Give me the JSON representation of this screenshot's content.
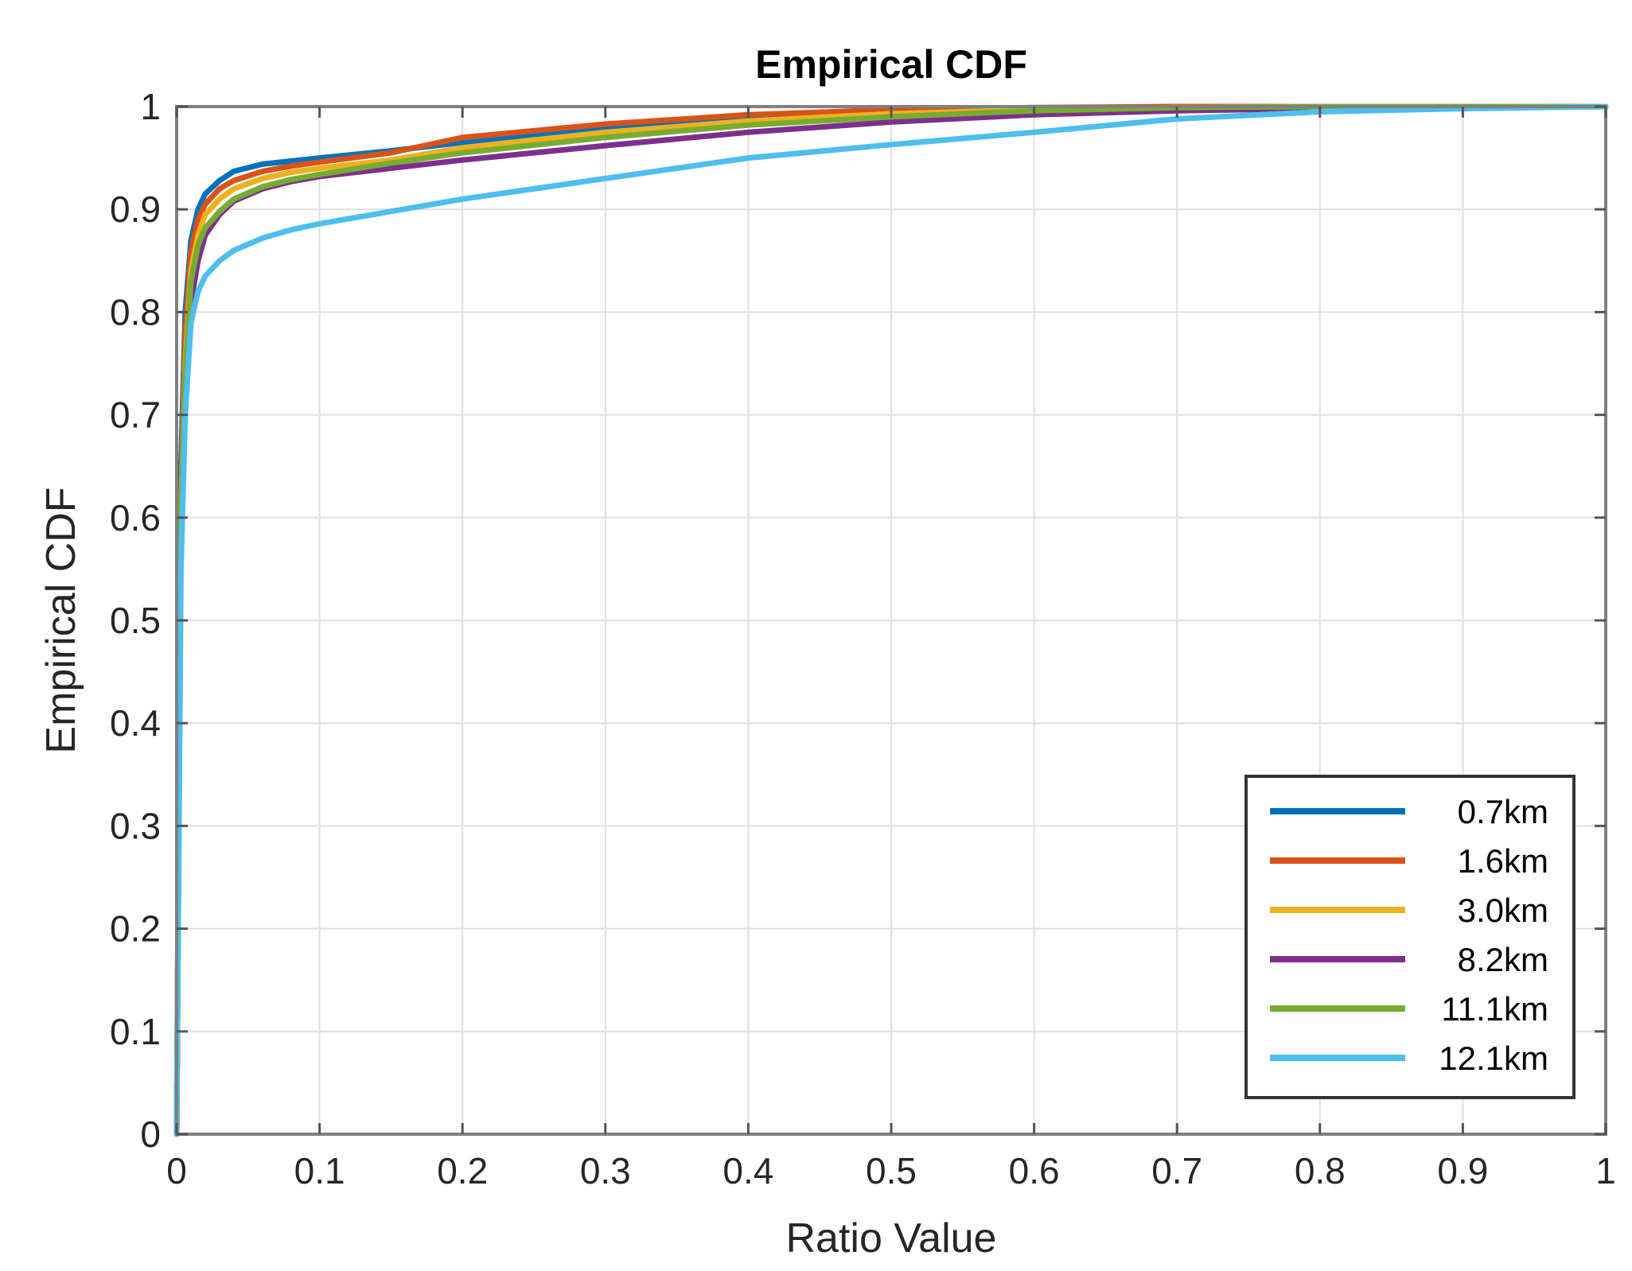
{
  "chart_data": {
    "type": "line",
    "title": "Empirical CDF",
    "xlabel": "Ratio Value",
    "ylabel": "Empirical CDF",
    "xlim": [
      0,
      1
    ],
    "ylim": [
      0,
      1
    ],
    "xticks": [
      "0",
      "0.1",
      "0.2",
      "0.3",
      "0.4",
      "0.5",
      "0.6",
      "0.7",
      "0.8",
      "0.9",
      "1"
    ],
    "yticks": [
      "0",
      "0.1",
      "0.2",
      "0.3",
      "0.4",
      "0.5",
      "0.6",
      "0.7",
      "0.8",
      "0.9",
      "1"
    ],
    "grid": true,
    "legend_position": "bottom-right",
    "series": [
      {
        "name": "0.7km",
        "color": "#0072BD",
        "x": [
          0,
          0.003,
          0.006,
          0.01,
          0.015,
          0.02,
          0.03,
          0.04,
          0.06,
          0.08,
          0.1,
          0.15,
          0.2,
          0.3,
          0.4,
          0.5,
          0.6,
          0.7,
          0.8,
          0.9,
          1
        ],
        "y": [
          0,
          0.65,
          0.8,
          0.87,
          0.9,
          0.915,
          0.928,
          0.937,
          0.944,
          0.947,
          0.95,
          0.957,
          0.965,
          0.978,
          0.988,
          0.995,
          0.998,
          1,
          1,
          1,
          1
        ]
      },
      {
        "name": "1.6km",
        "color": "#D95319",
        "x": [
          0,
          0.003,
          0.006,
          0.01,
          0.015,
          0.02,
          0.03,
          0.04,
          0.06,
          0.08,
          0.1,
          0.15,
          0.2,
          0.3,
          0.4,
          0.5,
          0.6,
          0.7,
          0.8,
          0.9,
          1
        ],
        "y": [
          0,
          0.62,
          0.78,
          0.86,
          0.89,
          0.905,
          0.92,
          0.928,
          0.937,
          0.942,
          0.946,
          0.955,
          0.97,
          0.983,
          0.992,
          0.997,
          0.999,
          1,
          1,
          1,
          1
        ]
      },
      {
        "name": "3.0km",
        "color": "#EDB120",
        "x": [
          0,
          0.003,
          0.006,
          0.01,
          0.015,
          0.02,
          0.03,
          0.04,
          0.06,
          0.08,
          0.1,
          0.15,
          0.2,
          0.3,
          0.4,
          0.5,
          0.6,
          0.7,
          0.8,
          0.9,
          1
        ],
        "y": [
          0,
          0.6,
          0.75,
          0.84,
          0.875,
          0.895,
          0.91,
          0.92,
          0.93,
          0.936,
          0.94,
          0.948,
          0.96,
          0.975,
          0.986,
          0.993,
          0.997,
          0.999,
          1,
          1,
          1
        ]
      },
      {
        "name": "8.2km",
        "color": "#7E2F8E",
        "x": [
          0,
          0.003,
          0.006,
          0.01,
          0.015,
          0.02,
          0.03,
          0.04,
          0.06,
          0.08,
          0.1,
          0.15,
          0.2,
          0.3,
          0.4,
          0.5,
          0.6,
          0.7,
          0.8,
          0.9,
          1
        ],
        "y": [
          0,
          0.58,
          0.72,
          0.81,
          0.85,
          0.875,
          0.895,
          0.908,
          0.92,
          0.927,
          0.932,
          0.94,
          0.948,
          0.962,
          0.975,
          0.985,
          0.992,
          0.996,
          0.998,
          0.999,
          1
        ]
      },
      {
        "name": "11.1km",
        "color": "#77AC30",
        "x": [
          0,
          0.003,
          0.006,
          0.01,
          0.015,
          0.02,
          0.03,
          0.04,
          0.06,
          0.08,
          0.1,
          0.15,
          0.2,
          0.3,
          0.4,
          0.5,
          0.6,
          0.7,
          0.8,
          0.9,
          1
        ],
        "y": [
          0,
          0.6,
          0.74,
          0.83,
          0.865,
          0.882,
          0.898,
          0.91,
          0.922,
          0.929,
          0.934,
          0.945,
          0.955,
          0.97,
          0.982,
          0.99,
          0.996,
          0.999,
          1,
          1,
          1
        ]
      },
      {
        "name": "12.1km",
        "color": "#4DBEEE",
        "x": [
          0,
          0.003,
          0.006,
          0.01,
          0.015,
          0.02,
          0.03,
          0.04,
          0.06,
          0.08,
          0.1,
          0.15,
          0.2,
          0.3,
          0.4,
          0.5,
          0.6,
          0.7,
          0.8,
          0.9,
          1
        ],
        "y": [
          0,
          0.55,
          0.7,
          0.79,
          0.82,
          0.835,
          0.85,
          0.86,
          0.872,
          0.88,
          0.886,
          0.898,
          0.91,
          0.93,
          0.95,
          0.963,
          0.975,
          0.988,
          0.995,
          0.998,
          1
        ]
      }
    ]
  }
}
